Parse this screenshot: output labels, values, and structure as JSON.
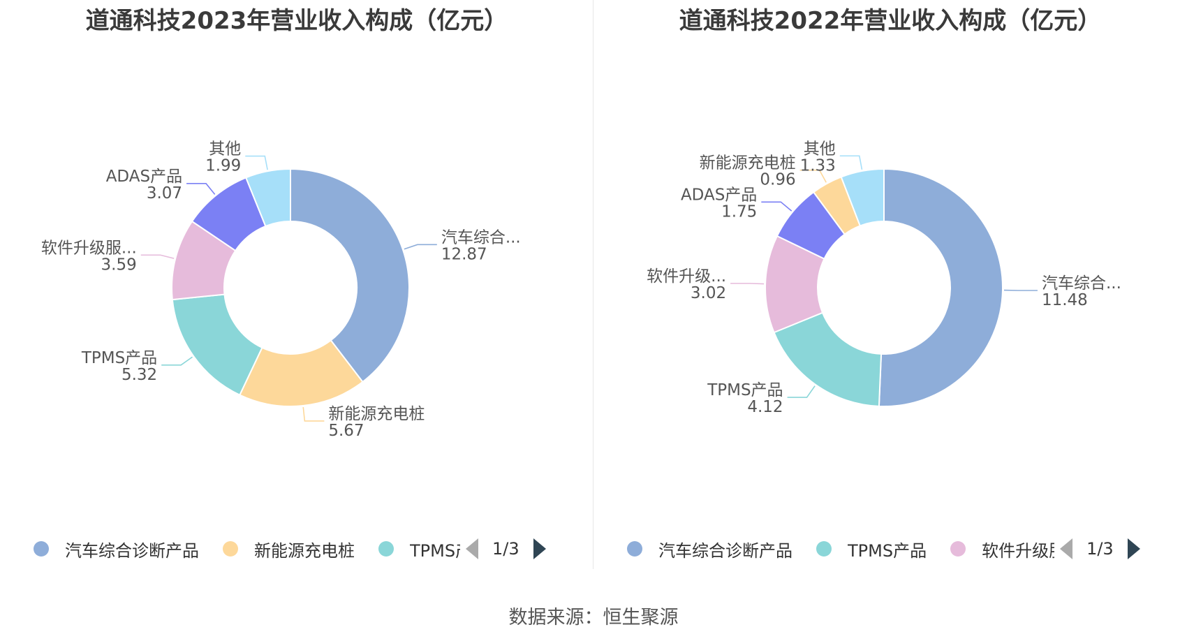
{
  "chart_data": [
    {
      "type": "pie",
      "title": "道通科技2023年营业收入构成（亿元）",
      "donut": true,
      "slices": [
        {
          "label": "汽车综合...",
          "full_name": "汽车综合诊断产品",
          "value": 12.87,
          "value_text": "12.87",
          "color": "#8eadd9"
        },
        {
          "label": "新能源充电桩",
          "full_name": "新能源充电桩",
          "value": 5.67,
          "value_text": "5.67",
          "color": "#fdd89a"
        },
        {
          "label": "TPMS产品",
          "full_name": "TPMS产品",
          "value": 5.32,
          "value_text": "5.32",
          "color": "#8ad6d8"
        },
        {
          "label": "软件升级服...",
          "full_name": "软件升级服务",
          "value": 3.59,
          "value_text": "3.59",
          "color": "#e6bbdb"
        },
        {
          "label": "ADAS产品",
          "full_name": "ADAS产品",
          "value": 3.07,
          "value_text": "3.07",
          "color": "#7b80f4"
        },
        {
          "label": "其他",
          "full_name": "其他",
          "value": 1.99,
          "value_text": "1.99",
          "color": "#a6dff9"
        }
      ],
      "legend": {
        "items": [
          {
            "label": "汽车综合诊断产品",
            "color": "#8eadd9"
          },
          {
            "label": "新能源充电桩",
            "color": "#fdd89a"
          },
          {
            "label": "TPMS产品",
            "color": "#8ad6d8"
          }
        ],
        "page": "1/3"
      }
    },
    {
      "type": "pie",
      "title": "道通科技2022年营业收入构成（亿元）",
      "donut": true,
      "slices": [
        {
          "label": "汽车综合...",
          "full_name": "汽车综合诊断产品",
          "value": 11.48,
          "value_text": "11.48",
          "color": "#8eadd9"
        },
        {
          "label": "TPMS产品",
          "full_name": "TPMS产品",
          "value": 4.12,
          "value_text": "4.12",
          "color": "#8ad6d8"
        },
        {
          "label": "软件升级...",
          "full_name": "软件升级服务",
          "value": 3.02,
          "value_text": "3.02",
          "color": "#e6bbdb"
        },
        {
          "label": "ADAS产品",
          "full_name": "ADAS产品",
          "value": 1.75,
          "value_text": "1.75",
          "color": "#7b80f4"
        },
        {
          "label": "新能源充电桩",
          "full_name": "新能源充电桩",
          "value": 0.96,
          "value_text": "0.96",
          "color": "#fdd89a"
        },
        {
          "label": "其他",
          "full_name": "其他",
          "value": 1.33,
          "value_text": "1.33",
          "color": "#a6dff9"
        }
      ],
      "legend": {
        "items": [
          {
            "label": "汽车综合诊断产品",
            "color": "#8eadd9"
          },
          {
            "label": "TPMS产品",
            "color": "#8ad6d8"
          },
          {
            "label": "软件升级服务",
            "color": "#e6bbdb"
          }
        ],
        "page": "1/3"
      }
    }
  ],
  "footer": {
    "source": "数据来源：恒生聚源"
  }
}
